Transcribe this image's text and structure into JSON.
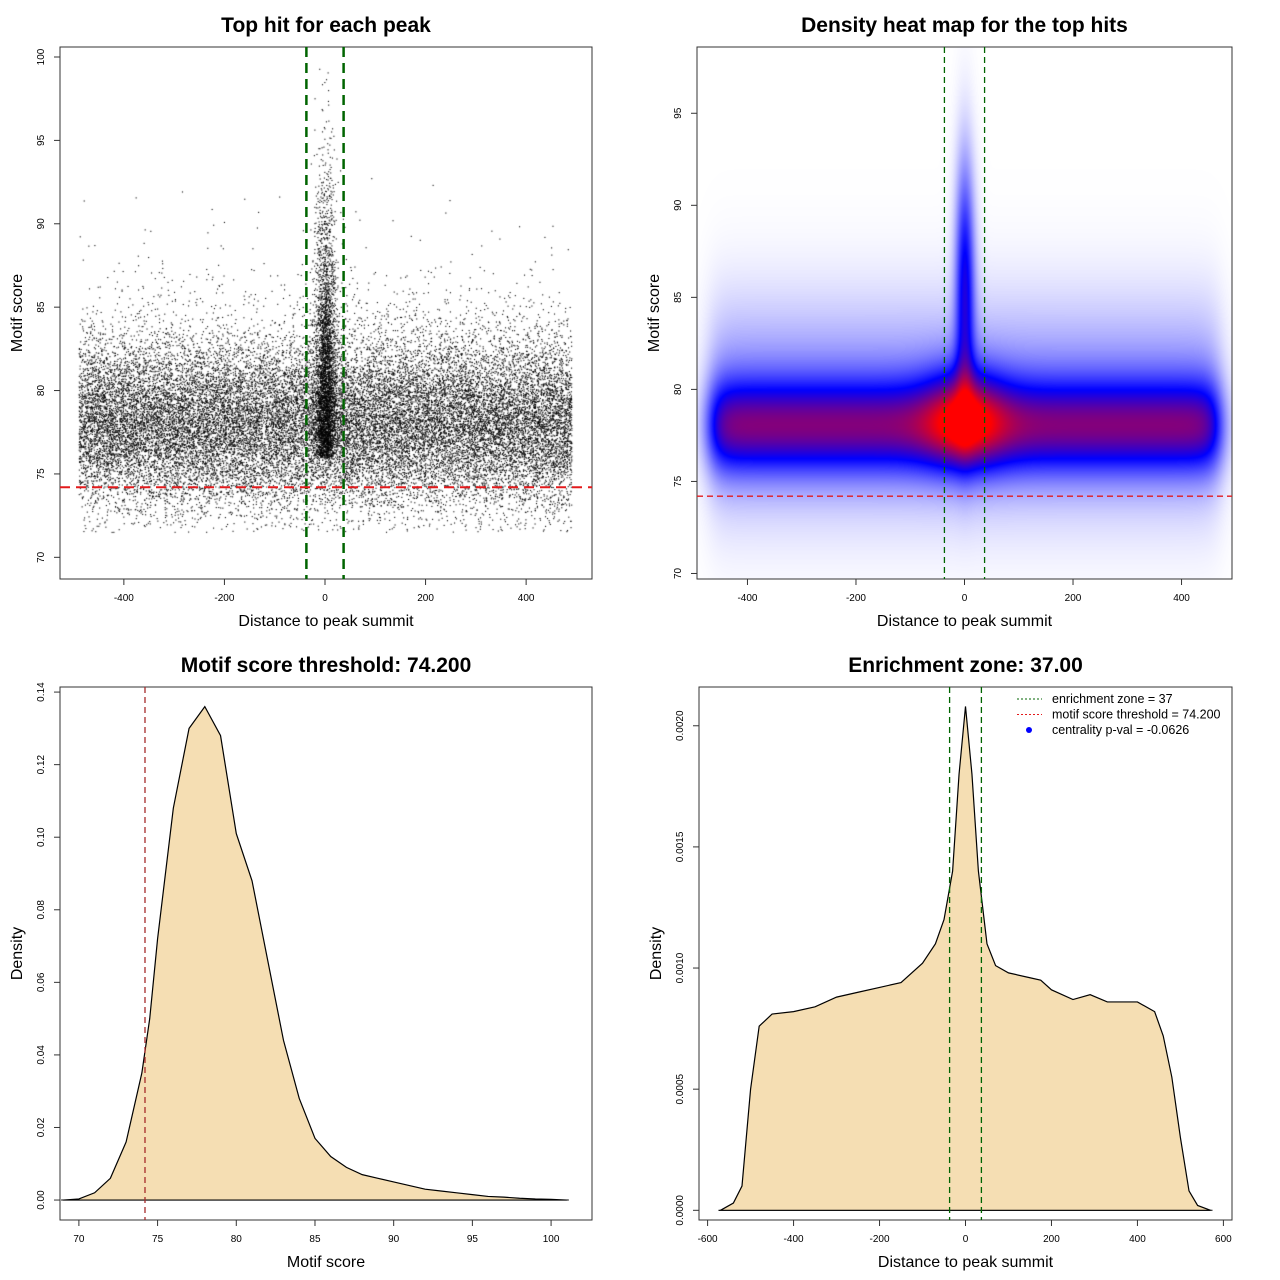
{
  "chart_data": [
    {
      "type": "scatter",
      "title": "Top hit for each peak",
      "xlabel": "Distance to peak summit",
      "ylabel": "Motif score",
      "xlim": [
        -527,
        531
      ],
      "ylim": [
        68.7,
        100.6
      ],
      "xticks": [
        -400,
        -200,
        0,
        200,
        400
      ],
      "yticks": [
        70,
        75,
        80,
        85,
        90,
        95,
        100
      ],
      "point_color": "#000000",
      "vlines": [
        {
          "x": -37,
          "color": "#006400",
          "style": "dashed"
        },
        {
          "x": 37,
          "color": "#006400",
          "style": "dashed"
        }
      ],
      "hlines": [
        {
          "y": 74.2,
          "color": "#e31a1c",
          "style": "dashed"
        }
      ]
    },
    {
      "type": "heatmap",
      "title": "Density heat map for the top hits",
      "xlabel": "Distance to peak summit",
      "ylabel": "Motif score",
      "xlim": [
        -493,
        493
      ],
      "ylim": [
        69.7,
        98.6
      ],
      "xticks": [
        -400,
        -200,
        0,
        200,
        400
      ],
      "yticks": [
        70,
        75,
        80,
        85,
        90,
        95
      ],
      "colors": [
        "#ffffff",
        "#0000ff",
        "#ff0000"
      ],
      "vlines": [
        {
          "x": -37,
          "color": "#006400",
          "style": "dashed"
        },
        {
          "x": 37,
          "color": "#006400",
          "style": "dashed"
        }
      ],
      "hlines": [
        {
          "y": 74.2,
          "color": "#e31a1c",
          "style": "dashed"
        }
      ]
    },
    {
      "type": "area",
      "title": "Motif score threshold: 74.200",
      "xlabel": "Motif score",
      "ylabel": "Density",
      "xlim": [
        68.8,
        102.6
      ],
      "ylim": [
        -0.0055,
        0.1414
      ],
      "xticks": [
        70,
        75,
        80,
        85,
        90,
        95,
        100
      ],
      "yticks": [
        "0.00",
        "0.02",
        "0.04",
        "0.06",
        "0.08",
        "0.10",
        "0.12",
        "0.14"
      ],
      "fill": "#f5deb3",
      "x": [
        69,
        70,
        71,
        72,
        73,
        74,
        74.5,
        75,
        76,
        77,
        78,
        79,
        80,
        81,
        82,
        83,
        84,
        85,
        86,
        87,
        88,
        89,
        90,
        91,
        92,
        93,
        94,
        95,
        96,
        97,
        98,
        99,
        100,
        101
      ],
      "y": [
        0,
        0.0003,
        0.002,
        0.006,
        0.016,
        0.035,
        0.05,
        0.072,
        0.108,
        0.13,
        0.136,
        0.128,
        0.101,
        0.088,
        0.066,
        0.044,
        0.028,
        0.017,
        0.012,
        0.009,
        0.007,
        0.006,
        0.005,
        0.004,
        0.003,
        0.0025,
        0.002,
        0.0015,
        0.001,
        0.0008,
        0.0005,
        0.0003,
        0.0002,
        0
      ],
      "vlines": [
        {
          "x": 74.2,
          "color": "#a52a2a",
          "style": "dashed"
        }
      ]
    },
    {
      "type": "area",
      "title": "Enrichment zone: 37.00",
      "xlabel": "Distance to peak summit",
      "ylabel": "Density",
      "xlim": [
        -620,
        620
      ],
      "ylim": [
        -4e-05,
        0.00216
      ],
      "xticks": [
        -600,
        -400,
        -200,
        0,
        200,
        400,
        600
      ],
      "yticks": [
        "0.0000",
        "0.0005",
        "0.0010",
        "0.0015",
        "0.0020"
      ],
      "fill": "#f5deb3",
      "x": [
        -570,
        -540,
        -520,
        -500,
        -480,
        -450,
        -400,
        -350,
        -300,
        -250,
        -200,
        -150,
        -100,
        -70,
        -50,
        -30,
        -15,
        0,
        15,
        30,
        50,
        70,
        100,
        150,
        175,
        200,
        250,
        290,
        330,
        400,
        440,
        460,
        480,
        500,
        520,
        540,
        570
      ],
      "y": [
        0,
        3e-05,
        0.0001,
        0.0005,
        0.00076,
        0.00081,
        0.00082,
        0.00084,
        0.00088,
        0.0009,
        0.00092,
        0.00094,
        0.00102,
        0.0011,
        0.0012,
        0.0014,
        0.0018,
        0.00208,
        0.0018,
        0.0014,
        0.0011,
        0.00101,
        0.00098,
        0.00096,
        0.00095,
        0.00091,
        0.00087,
        0.00089,
        0.00086,
        0.00086,
        0.00082,
        0.00072,
        0.00055,
        0.0003,
        8e-05,
        2e-05,
        0
      ],
      "vlines": [
        {
          "x": -37,
          "color": "#006400",
          "style": "dashed"
        },
        {
          "x": 37,
          "color": "#006400",
          "style": "dashed"
        }
      ],
      "legend": {
        "position": "top-right",
        "entries": [
          {
            "label": "enrichment zone = 37",
            "color": "#006400",
            "symbol": "dotted-line"
          },
          {
            "label": "motif score threshold = 74.200",
            "color": "#e31a1c",
            "symbol": "dotted-line"
          },
          {
            "label": "centrality p-val = -0.0626",
            "color": "#0000ff",
            "symbol": "dot"
          }
        ]
      }
    }
  ]
}
